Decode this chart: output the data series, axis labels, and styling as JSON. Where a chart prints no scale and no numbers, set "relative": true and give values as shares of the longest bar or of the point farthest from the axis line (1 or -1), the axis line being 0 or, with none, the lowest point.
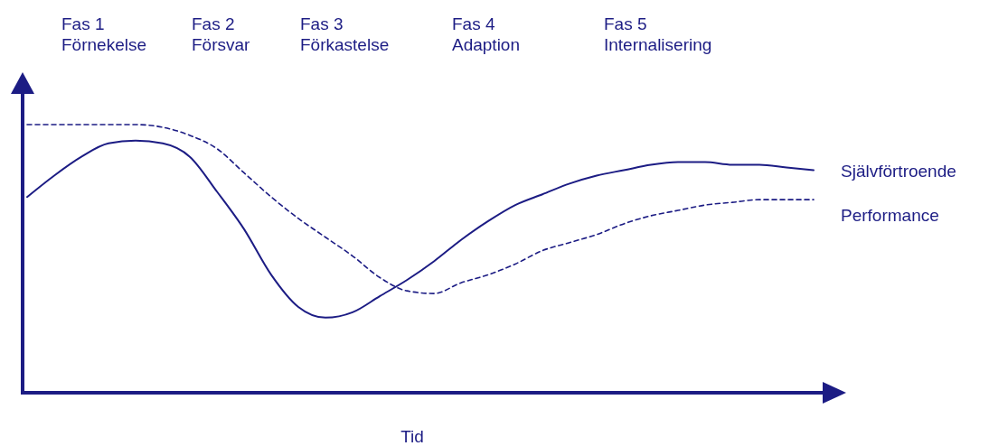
{
  "chart_data": {
    "type": "line",
    "relative": true,
    "xlabel": "Tid",
    "annotations": [
      "Fas 1\nFörnekelse",
      "Fas 2\nFörsvar",
      "Fas 3\nFörkastelse",
      "Fas 4\nAdaption",
      "Fas 5\nInternalisering"
    ],
    "categories": [
      null,
      null,
      null,
      null,
      null,
      null,
      null,
      null,
      null,
      null,
      null,
      null,
      null,
      null,
      null,
      null,
      null,
      null,
      null,
      null,
      null,
      null,
      null,
      null,
      null,
      null,
      null,
      null,
      null,
      null
    ],
    "series": [
      {
        "name": "Självförtroende",
        "color": "#1c1c84",
        "line_style": "solid",
        "values": [
          0.73,
          0.81,
          0.88,
          0.93,
          0.94,
          0.93,
          0.88,
          0.75,
          0.61,
          0.44,
          0.32,
          0.28,
          0.3,
          0.36,
          0.42,
          0.49,
          0.57,
          0.64,
          0.7,
          0.74,
          0.78,
          0.81,
          0.83,
          0.85,
          0.86,
          0.86,
          0.85,
          0.85,
          0.84,
          0.83
        ]
      },
      {
        "name": "Performance",
        "color": "#1c1c84",
        "line_style": "dashed",
        "values": [
          1,
          1,
          1,
          1,
          1,
          0.99,
          0.96,
          0.91,
          0.82,
          0.73,
          0.65,
          0.58,
          0.51,
          0.43,
          0.38,
          0.37,
          0.41,
          0.44,
          0.48,
          0.53,
          0.56,
          0.59,
          0.63,
          0.66,
          0.68,
          0.7,
          0.71,
          0.72,
          0.72,
          0.72
        ]
      }
    ]
  }
}
